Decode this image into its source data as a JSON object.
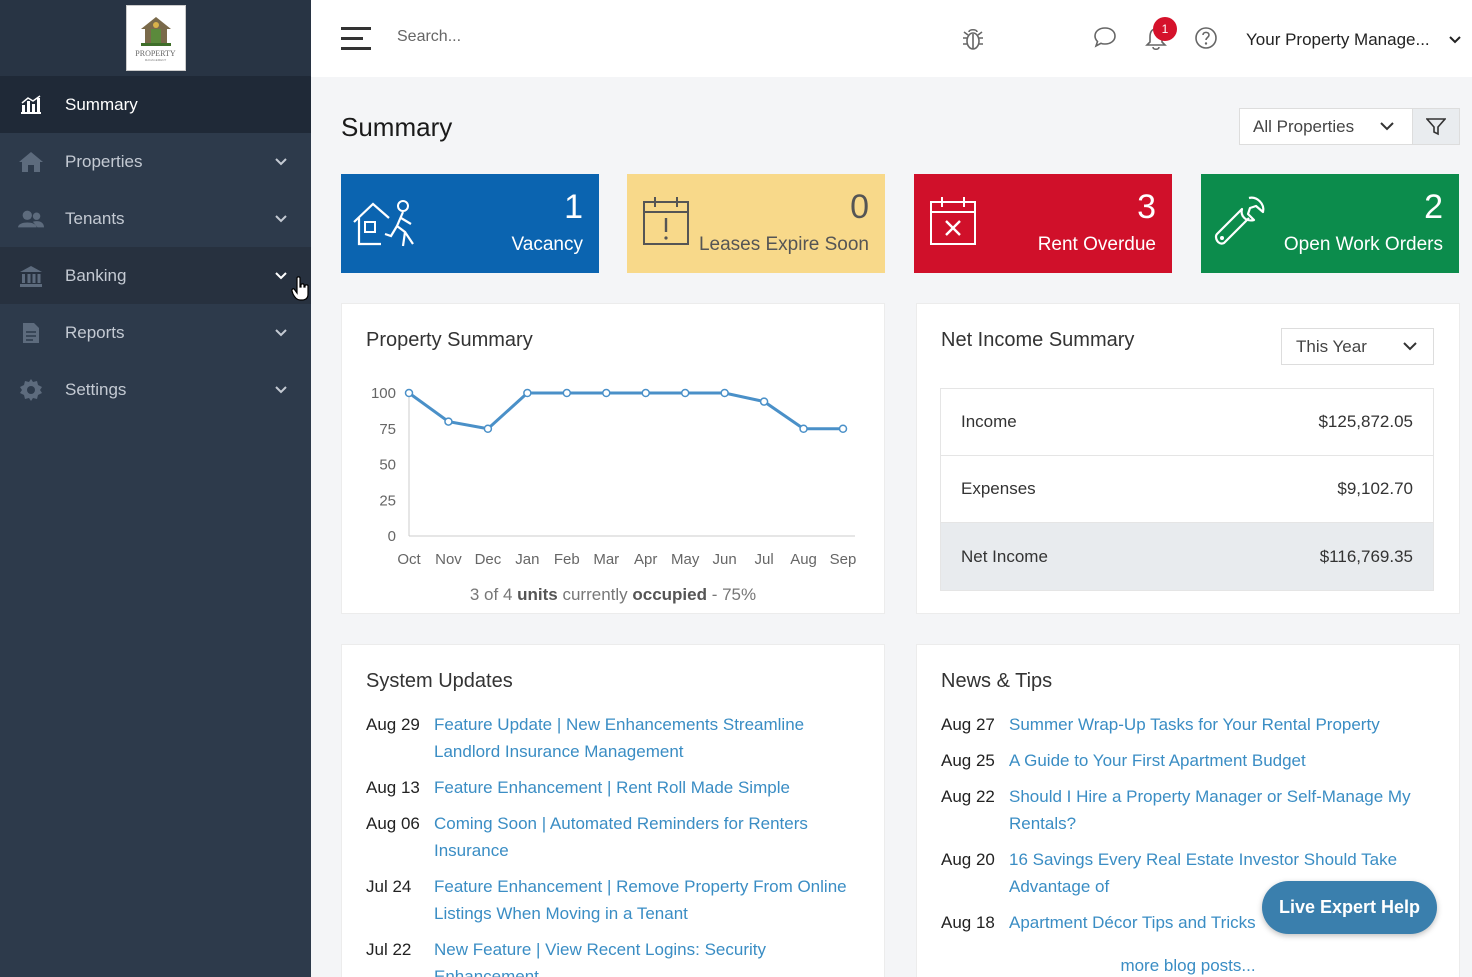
{
  "sidebar": {
    "logo_text": "PROPERTY",
    "logo_sub": "MANAGEMENT",
    "items": [
      {
        "label": "Summary",
        "icon": "chart-bar-icon"
      },
      {
        "label": "Properties",
        "icon": "home-icon"
      },
      {
        "label": "Tenants",
        "icon": "users-icon"
      },
      {
        "label": "Banking",
        "icon": "bank-icon"
      },
      {
        "label": "Reports",
        "icon": "file-icon"
      },
      {
        "label": "Settings",
        "icon": "gear-icon"
      }
    ]
  },
  "topbar": {
    "search_placeholder": "Search...",
    "notification_count": "1",
    "user_menu": "Your Property Manage..."
  },
  "page": {
    "title": "Summary",
    "property_filter": "All Properties"
  },
  "stats": [
    {
      "value": "1",
      "label": "Vacancy",
      "color": "#0b64b0",
      "icon": "house-person-icon"
    },
    {
      "value": "0",
      "label": "Leases Expire Soon",
      "color": "#f8d98a",
      "icon": "calendar-alert-icon"
    },
    {
      "value": "3",
      "label": "Rent Overdue",
      "color": "#d0102a",
      "icon": "calendar-x-icon"
    },
    {
      "value": "2",
      "label": "Open Work Orders",
      "color": "#0c8c4c",
      "icon": "wrench-icon"
    }
  ],
  "property_summary": {
    "title": "Property Summary",
    "occupancy": {
      "prefix": "3 of 4 ",
      "units": "units",
      "mid": " currently ",
      "occupied": "occupied",
      "suffix": " - 75%"
    }
  },
  "chart_data": {
    "type": "line",
    "title": "",
    "categories": [
      "Oct",
      "Nov",
      "Dec",
      "Jan",
      "Feb",
      "Mar",
      "Apr",
      "May",
      "Jun",
      "Jul",
      "Aug",
      "Sep"
    ],
    "series": [
      {
        "values": [
          100,
          80,
          75,
          100,
          100,
          100,
          100,
          100,
          100,
          94,
          75,
          75
        ]
      }
    ],
    "yticks": [
      0,
      25,
      50,
      75,
      100
    ],
    "ylim": [
      0,
      100
    ],
    "color": "#4a90c8"
  },
  "net_income": {
    "title": "Net Income Summary",
    "period": "This Year",
    "rows": [
      {
        "label": "Income",
        "value": "$125,872.05"
      },
      {
        "label": "Expenses",
        "value": "$9,102.70"
      },
      {
        "label": "Net Income",
        "value": "$116,769.35"
      }
    ]
  },
  "system_updates": {
    "title": "System Updates",
    "items": [
      {
        "date": "Aug 29",
        "text": "Feature Update | New Enhancements Streamline Landlord Insurance Management"
      },
      {
        "date": "Aug 13",
        "text": "Feature Enhancement | Rent Roll Made Simple"
      },
      {
        "date": "Aug 06",
        "text": "Coming Soon | Automated Reminders for Renters Insurance"
      },
      {
        "date": "Jul 24",
        "text": "Feature Enhancement | Remove Property From Online Listings When Moving in a Tenant"
      },
      {
        "date": "Jul 22",
        "text": "New Feature | View Recent Logins: Security Enhancement"
      }
    ]
  },
  "news": {
    "title": "News & Tips",
    "items": [
      {
        "date": "Aug 27",
        "text": "Summer Wrap-Up Tasks for Your Rental Property"
      },
      {
        "date": "Aug 25",
        "text": "A Guide to Your First Apartment Budget"
      },
      {
        "date": "Aug 22",
        "text": "Should I Hire a Property Manager or Self-Manage My Rentals?"
      },
      {
        "date": "Aug 20",
        "text": "16 Savings Every Real Estate Investor Should Take Advantage of"
      },
      {
        "date": "Aug 18",
        "text": "Apartment Décor Tips and Tricks"
      }
    ],
    "more": "more blog posts..."
  },
  "live_help": "Live Expert Help"
}
